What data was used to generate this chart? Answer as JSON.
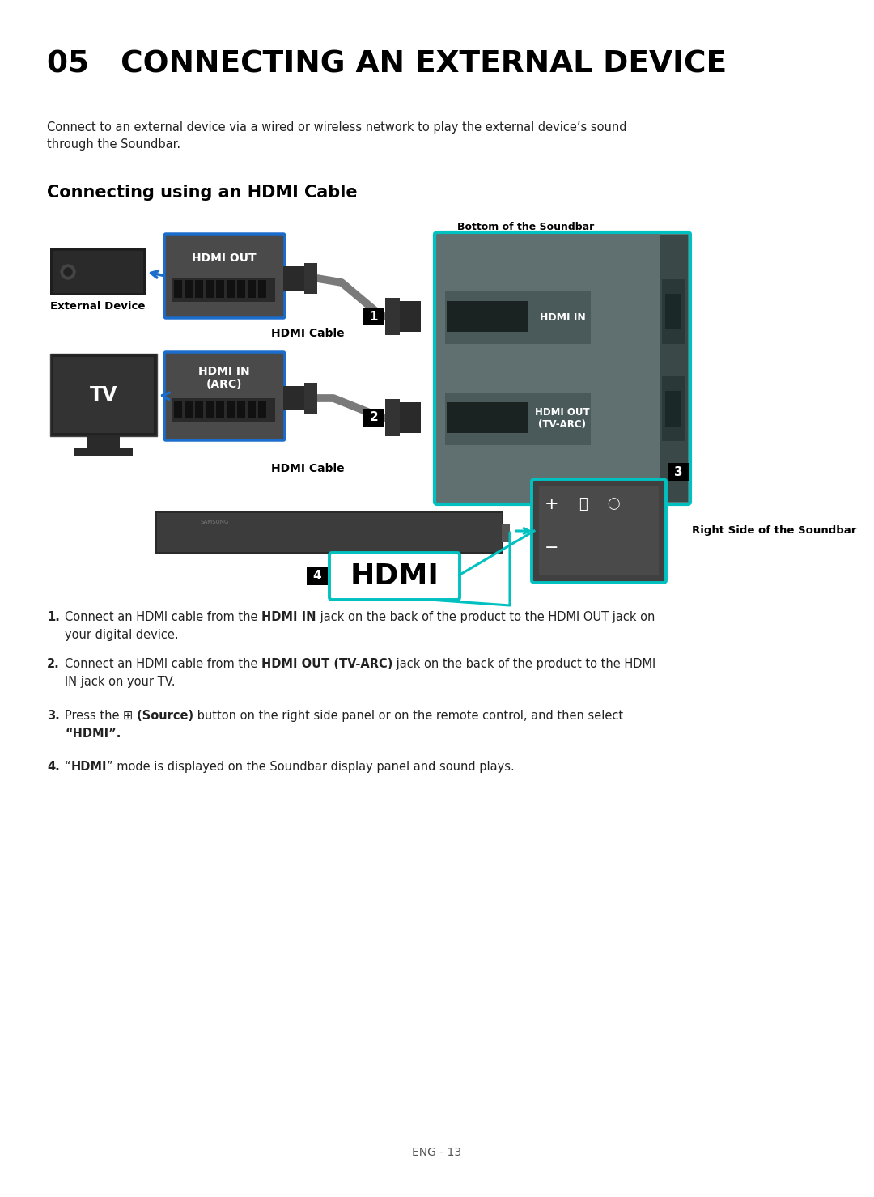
{
  "title": "05   CONNECTING AN EXTERNAL DEVICE",
  "subtitle": "Connect to an external device via a wired or wireless network to play the external device’s sound\nthrough the Soundbar.",
  "section_title": "Connecting using an HDMI Cable",
  "bottom_label": "Bottom of the Soundbar",
  "right_label": "Right Side of the Soundbar",
  "external_device_label": "External Device",
  "tv_label": "TV",
  "hdmi_cable_label1": "HDMI Cable",
  "hdmi_cable_label2": "HDMI Cable",
  "hdmi_out_label": "HDMI OUT",
  "hdmi_in_label": "HDMI IN",
  "hdmi_out_arc_label": "HDMI OUT\n(TV-ARC)",
  "hdmi_in_arc_label": "HDMI IN\n(ARC)",
  "hdmi_display_label": "HDMI",
  "inst1_before": "Connect an HDMI cable from the ",
  "inst1_bold": "HDMI IN",
  "inst1_after": " jack on the back of the product to the HDMI OUT jack on",
  "inst1_cont": "your digital device.",
  "inst2_before": "Connect an HDMI cable from the ",
  "inst2_bold": "HDMI OUT (TV-ARC)",
  "inst2_after": " jack on the back of the product to the HDMI",
  "inst2_cont": "IN jack on your TV.",
  "inst3_before": "Press the ",
  "inst3_bold": "(Source)",
  "inst3_after": " button on the right side panel or on the remote control, and then select",
  "inst3_cont": "“HDMI”.",
  "inst4_before": "“",
  "inst4_bold": "HDMI",
  "inst4_after": "” mode is displayed on the Soundbar display panel and sound plays.",
  "footer": "ENG - 13",
  "bg_color": "#ffffff",
  "blue": "#1a6dcc",
  "cyan": "#00c0c0",
  "dark_gray": "#3a3a3a",
  "med_gray": "#555555",
  "light_gray": "#888888",
  "panel_gray": "#607070",
  "port_dark": "#222222"
}
